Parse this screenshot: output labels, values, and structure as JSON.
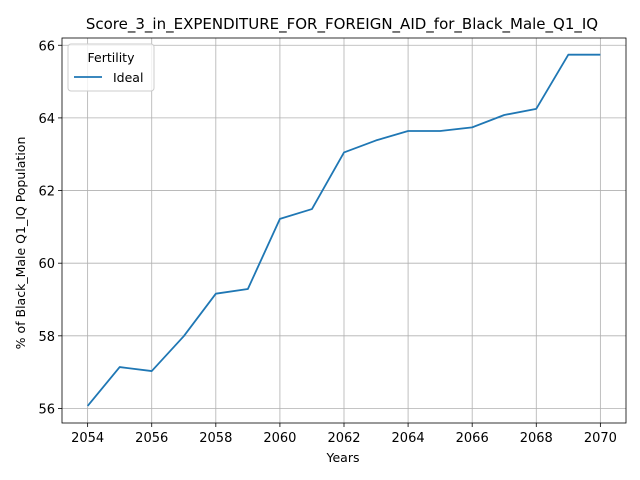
{
  "chart_data": {
    "type": "line",
    "title": "Score_3_in_EXPENDITURE_FOR_FOREIGN_AID_for_Black_Male_Q1_IQ",
    "xlabel": "Years",
    "ylabel": "% of Black_Male Q1_IQ Population",
    "x": [
      2054,
      2055,
      2056,
      2057,
      2058,
      2059,
      2060,
      2061,
      2062,
      2063,
      2064,
      2065,
      2066,
      2067,
      2068,
      2069,
      2070
    ],
    "series": [
      {
        "name": "Ideal",
        "color": "#1f77b4",
        "values": [
          56.07,
          57.14,
          57.03,
          57.99,
          59.16,
          59.29,
          61.22,
          61.49,
          63.05,
          63.38,
          63.64,
          63.64,
          63.74,
          64.08,
          64.25,
          65.74,
          65.74
        ]
      }
    ],
    "xlim": [
      2053.2,
      2070.8
    ],
    "ylim": [
      55.6,
      66.2
    ],
    "xticks": [
      2054,
      2056,
      2058,
      2060,
      2062,
      2064,
      2066,
      2068,
      2070
    ],
    "yticks": [
      56,
      58,
      60,
      62,
      64,
      66
    ],
    "grid": true,
    "legend": {
      "title": "Fertility",
      "placement": "top-left"
    }
  }
}
